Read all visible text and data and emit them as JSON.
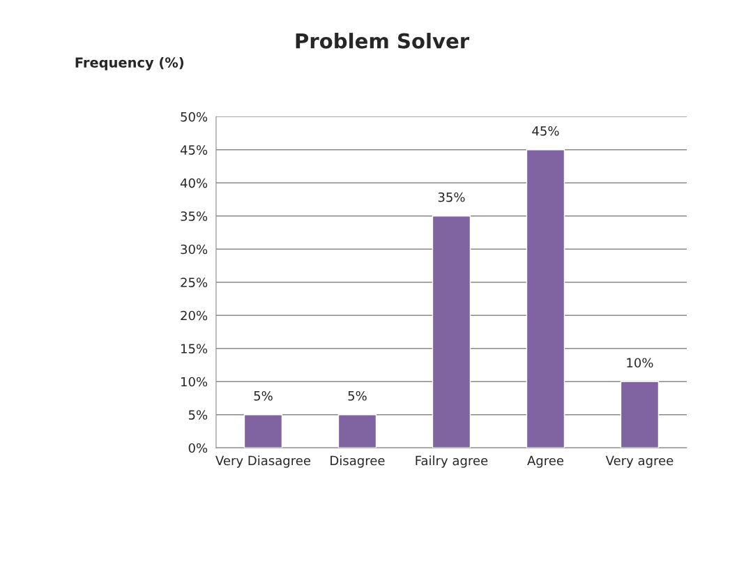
{
  "chart_data": {
    "type": "bar",
    "title": "Problem Solver",
    "ylabel": "Frequency (%)",
    "categories": [
      "Very Diasagree",
      "Disagree",
      "Failry agree",
      "Agree",
      "Very agree"
    ],
    "values": [
      5,
      5,
      35,
      45,
      10
    ],
    "value_labels": [
      "5%",
      "5%",
      "35%",
      "45%",
      "10%"
    ],
    "color": "#8064a2",
    "ylim": [
      0,
      50
    ],
    "yticks": [
      {
        "value": 0,
        "label": "0%"
      },
      {
        "value": 5,
        "label": "5%"
      },
      {
        "value": 10,
        "label": "10%"
      },
      {
        "value": 15,
        "label": "15%"
      },
      {
        "value": 20,
        "label": "20%"
      },
      {
        "value": 25,
        "label": "25%"
      },
      {
        "value": 30,
        "label": "30%"
      },
      {
        "value": 35,
        "label": "35%"
      },
      {
        "value": 40,
        "label": "40%"
      },
      {
        "value": 45,
        "label": "45%"
      },
      {
        "value": 50,
        "label": "50%"
      }
    ],
    "grid": "y",
    "legend": false
  }
}
